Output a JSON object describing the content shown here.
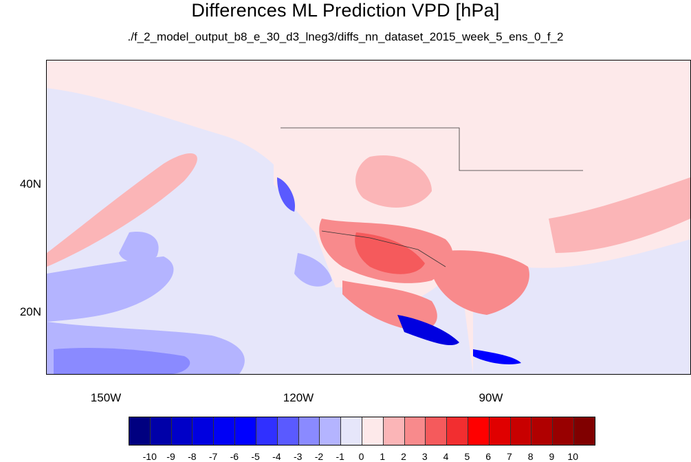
{
  "title": "Differences ML Prediction VPD [hPa]",
  "subtitle": "./f_2_model_output_b8_e_30_d3_lneg3/diffs_nn_dataset_2015_week_5_ens_0_f_2",
  "map": {
    "lat_labels": [
      "40N",
      "20N"
    ],
    "lon_labels": [
      "150W",
      "120W",
      "90W"
    ],
    "background_color": "#fde9ea"
  },
  "colorbar": {
    "colors": [
      "#000080",
      "#0000a8",
      "#0000c8",
      "#0000e0",
      "#0000f5",
      "#0000ff",
      "#3030ff",
      "#5a5aff",
      "#8a8aff",
      "#b4b4ff",
      "#e6e6fa",
      "#fde9ea",
      "#fbb5b7",
      "#f88a8c",
      "#f55a5c",
      "#f22e30",
      "#ff0000",
      "#e00000",
      "#c80000",
      "#b00000",
      "#980000",
      "#800000"
    ],
    "labels": [
      "-10",
      "-9",
      "-8",
      "-7",
      "-6",
      "-5",
      "-4",
      "-3",
      "-2",
      "-1",
      "0",
      "1",
      "2",
      "3",
      "4",
      "5",
      "6",
      "7",
      "8",
      "9",
      "10"
    ]
  }
}
